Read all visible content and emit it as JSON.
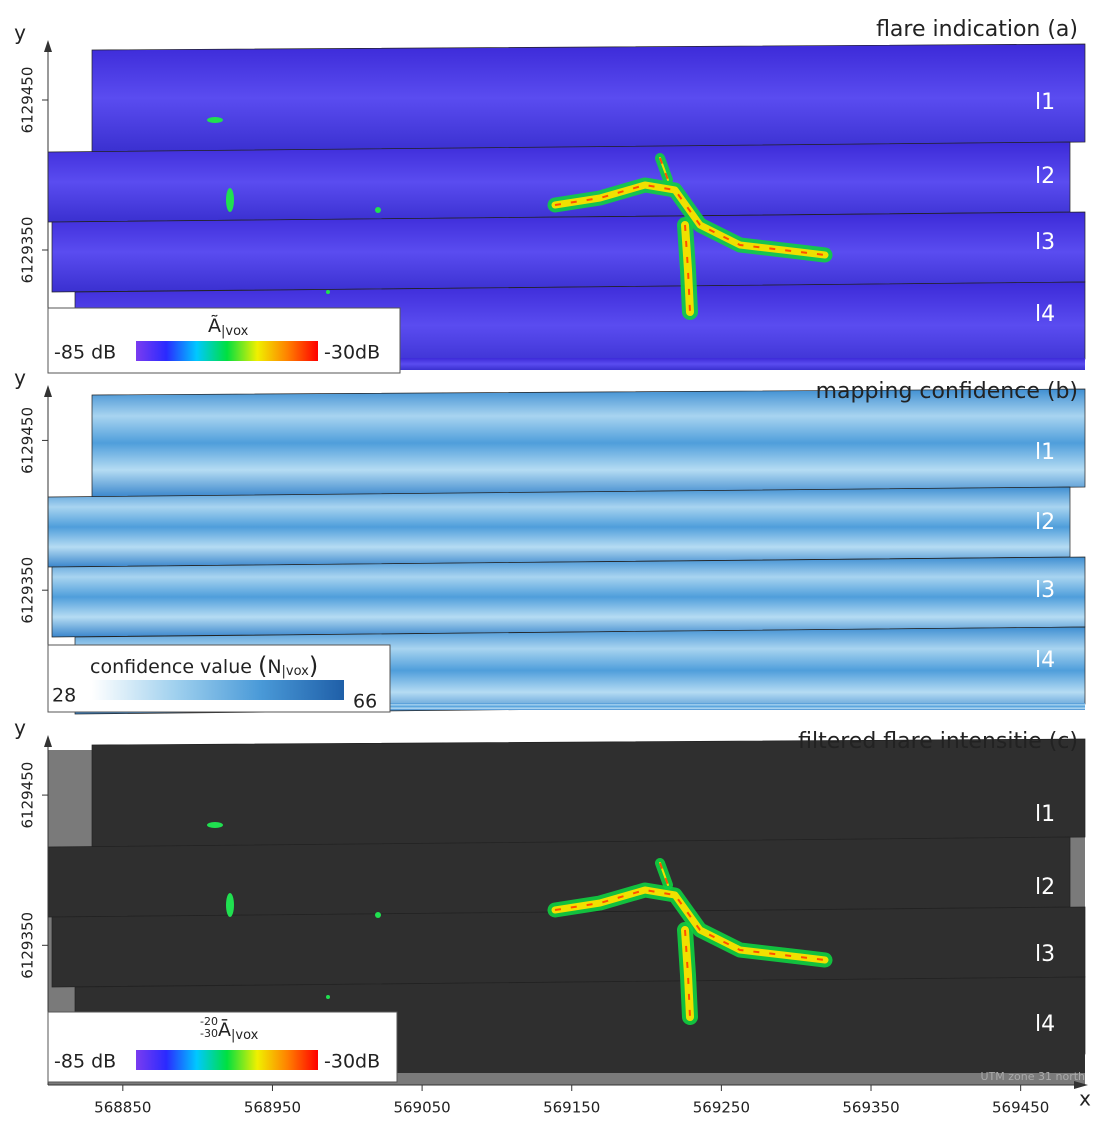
{
  "x_axis": {
    "label": "x",
    "xlim": [
      568800,
      569493
    ],
    "ticks": [
      568850,
      568950,
      569050,
      569150,
      569250,
      569350,
      569450
    ]
  },
  "y_label": "y",
  "panels": [
    {
      "title": "flare indication (a)",
      "style": "flare",
      "ylim": [
        6129270,
        6129490
      ],
      "yticks": [
        6129450,
        6129350
      ],
      "swath_labels": [
        "l1",
        "l2",
        "l3",
        "l4"
      ],
      "colorbar": {
        "symbol": "Ã",
        "subscript": "|vox",
        "min_label": "-85 dB",
        "max_label": "-30dB",
        "colors": [
          "#7a3cf0",
          "#2a2aff",
          "#00c8ff",
          "#00e040",
          "#f0f000",
          "#ff8000",
          "#ff0000"
        ]
      }
    },
    {
      "title": "mapping confidence (b)",
      "style": "confidence",
      "ylim": [
        6129270,
        6129487
      ],
      "yticks": [
        6129450,
        6129350
      ],
      "swath_labels": [
        "l1",
        "l2",
        "l3",
        "l4"
      ],
      "colorbar": {
        "label": "confidence value",
        "open": "(",
        "symbol": "N",
        "subscript": "|vox",
        "close": ")",
        "min_label": "28",
        "max_label": "66",
        "colors": [
          "#ffffff",
          "#9fd0ee",
          "#4a9ad8",
          "#1f5fa8"
        ]
      }
    },
    {
      "title": "filtered flare intensitie (c)",
      "style": "filtered",
      "ylim": [
        6129257,
        6129490
      ],
      "yticks": [
        6129450,
        6129350
      ],
      "swath_labels": [
        "l1",
        "l2",
        "l3",
        "l4"
      ],
      "colorbar": {
        "superscript": "-20",
        "sub_prefix": "-30",
        "symbol": "Ā",
        "subscript": "|vox",
        "min_label": "-85 dB",
        "max_label": "-30dB",
        "colors": [
          "#7a3cf0",
          "#2a2aff",
          "#00c8ff",
          "#00e040",
          "#f0f000",
          "#ff8000",
          "#ff0000"
        ]
      },
      "note": "UTM zone 31 north"
    }
  ]
}
